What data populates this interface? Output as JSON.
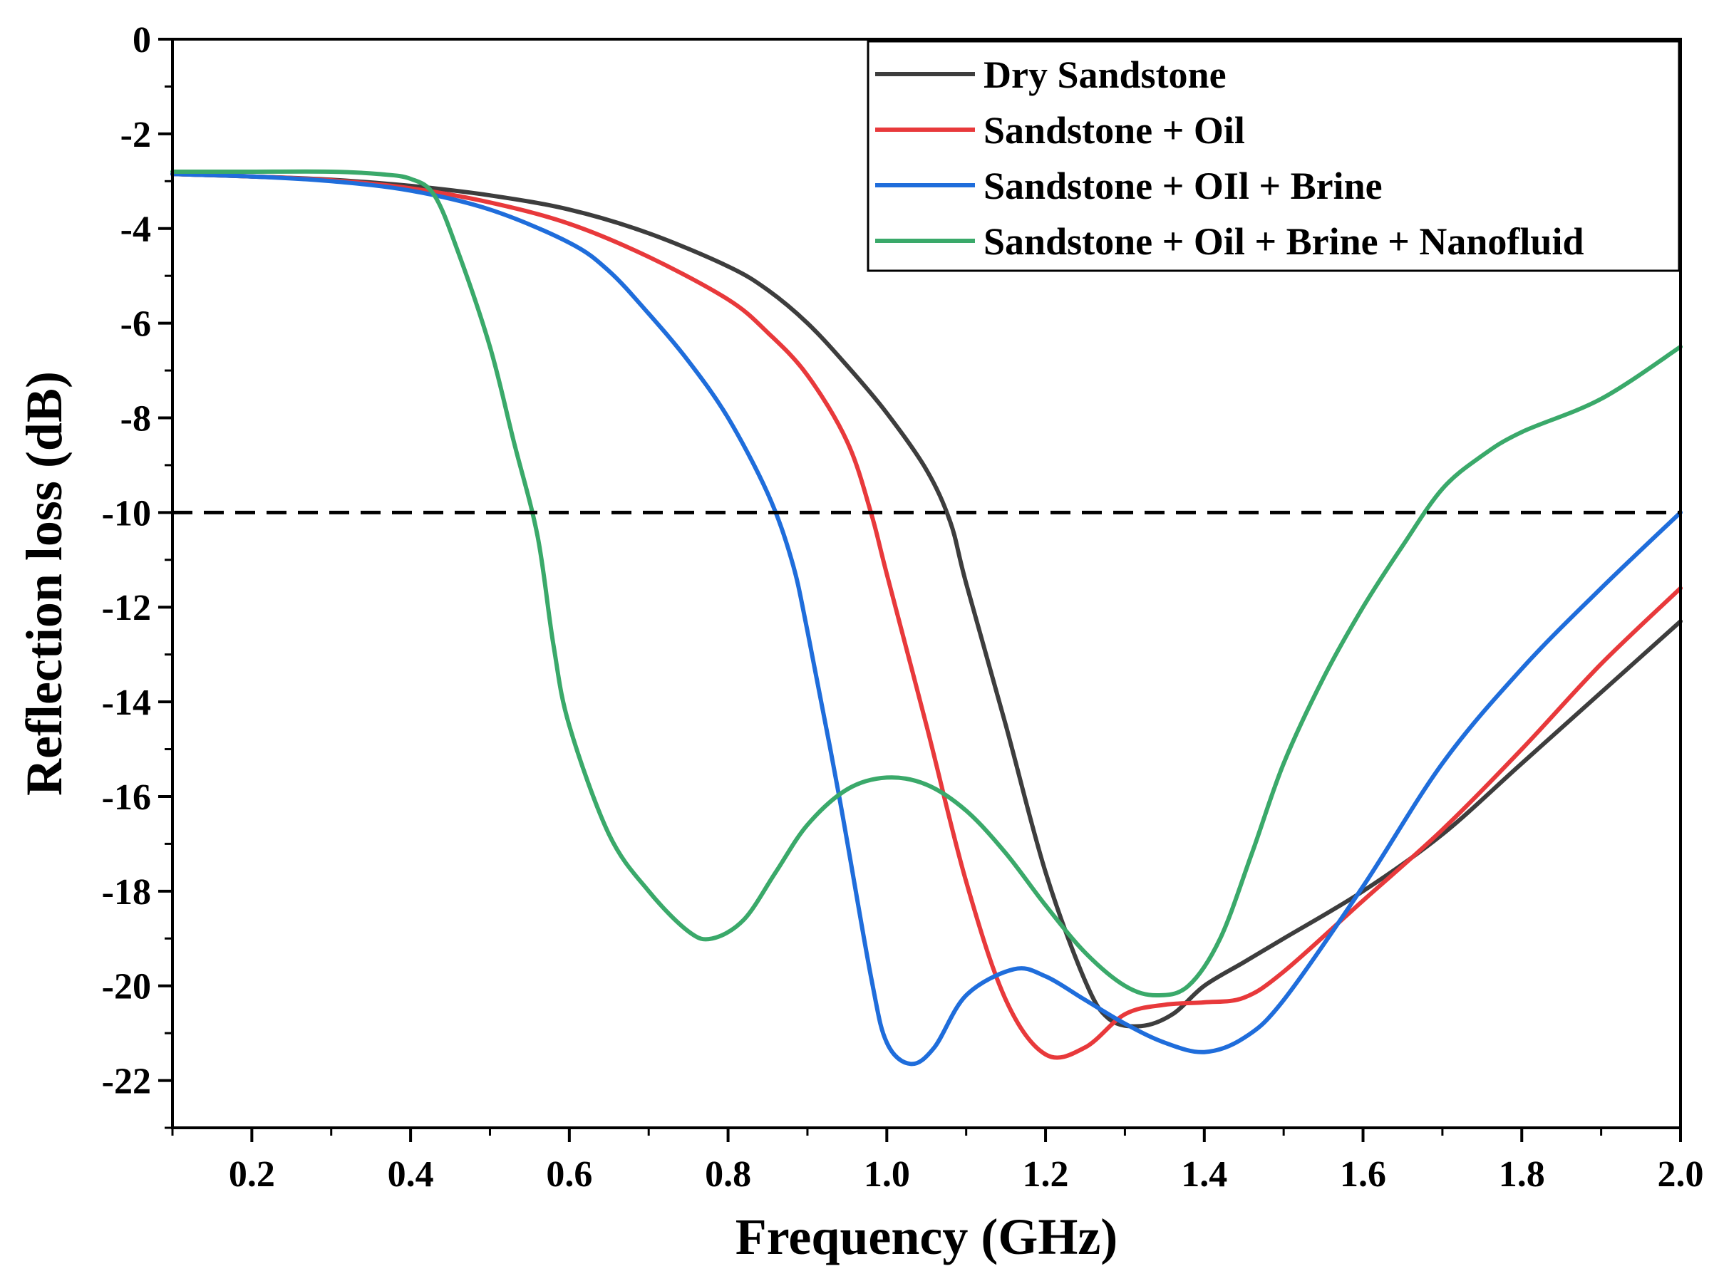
{
  "chart_data": {
    "type": "line",
    "xlabel": "Frequency (GHz)",
    "ylabel": "Reflection loss (dB)",
    "xlim": [
      0.1,
      2.0
    ],
    "ylim": [
      -23,
      0
    ],
    "x_ticks": [
      "0.2",
      "0.4",
      "0.6",
      "0.8",
      "1.0",
      "1.2",
      "1.4",
      "1.6",
      "1.8",
      "2.0"
    ],
    "y_ticks": [
      "0",
      "-2",
      "-4",
      "-6",
      "-8",
      "-10",
      "-12",
      "-14",
      "-16",
      "-18",
      "-20",
      "-22"
    ],
    "grid": false,
    "legend_position": "top-right",
    "reference_line": {
      "y": -10,
      "style": "dashed",
      "color": "#000000"
    },
    "series": [
      {
        "name": "Dry Sandstone",
        "color": "#3d3d3d",
        "points": [
          [
            0.1,
            -2.85
          ],
          [
            0.2,
            -2.9
          ],
          [
            0.3,
            -2.97
          ],
          [
            0.4,
            -3.1
          ],
          [
            0.5,
            -3.3
          ],
          [
            0.6,
            -3.6
          ],
          [
            0.7,
            -4.1
          ],
          [
            0.8,
            -4.8
          ],
          [
            0.85,
            -5.3
          ],
          [
            0.9,
            -6.0
          ],
          [
            0.95,
            -6.9
          ],
          [
            1.0,
            -7.9
          ],
          [
            1.05,
            -9.1
          ],
          [
            1.08,
            -10.2
          ],
          [
            1.1,
            -11.5
          ],
          [
            1.15,
            -14.5
          ],
          [
            1.2,
            -17.6
          ],
          [
            1.25,
            -19.9
          ],
          [
            1.28,
            -20.7
          ],
          [
            1.32,
            -20.85
          ],
          [
            1.36,
            -20.6
          ],
          [
            1.4,
            -20.0
          ],
          [
            1.45,
            -19.5
          ],
          [
            1.5,
            -19.0
          ],
          [
            1.6,
            -18.0
          ],
          [
            1.7,
            -16.8
          ],
          [
            1.8,
            -15.3
          ],
          [
            1.9,
            -13.8
          ],
          [
            2.0,
            -12.3
          ]
        ]
      },
      {
        "name": "Sandstone + Oil",
        "color": "#e8393b",
        "points": [
          [
            0.1,
            -2.85
          ],
          [
            0.2,
            -2.9
          ],
          [
            0.3,
            -2.98
          ],
          [
            0.4,
            -3.15
          ],
          [
            0.5,
            -3.45
          ],
          [
            0.6,
            -3.9
          ],
          [
            0.7,
            -4.6
          ],
          [
            0.8,
            -5.5
          ],
          [
            0.85,
            -6.2
          ],
          [
            0.9,
            -7.1
          ],
          [
            0.95,
            -8.5
          ],
          [
            0.98,
            -10.0
          ],
          [
            1.0,
            -11.3
          ],
          [
            1.05,
            -14.5
          ],
          [
            1.1,
            -17.8
          ],
          [
            1.15,
            -20.3
          ],
          [
            1.2,
            -21.45
          ],
          [
            1.25,
            -21.3
          ],
          [
            1.3,
            -20.6
          ],
          [
            1.35,
            -20.4
          ],
          [
            1.4,
            -20.35
          ],
          [
            1.45,
            -20.25
          ],
          [
            1.5,
            -19.7
          ],
          [
            1.6,
            -18.2
          ],
          [
            1.7,
            -16.7
          ],
          [
            1.8,
            -15.0
          ],
          [
            1.9,
            -13.2
          ],
          [
            2.0,
            -11.6
          ]
        ]
      },
      {
        "name": "Sandstone + OIl + Brine",
        "color": "#1f6ddb",
        "points": [
          [
            0.1,
            -2.85
          ],
          [
            0.2,
            -2.9
          ],
          [
            0.3,
            -3.0
          ],
          [
            0.4,
            -3.2
          ],
          [
            0.5,
            -3.6
          ],
          [
            0.6,
            -4.3
          ],
          [
            0.65,
            -4.9
          ],
          [
            0.7,
            -5.8
          ],
          [
            0.75,
            -6.8
          ],
          [
            0.8,
            -8.0
          ],
          [
            0.85,
            -9.6
          ],
          [
            0.88,
            -11.0
          ],
          [
            0.9,
            -12.5
          ],
          [
            0.94,
            -16.0
          ],
          [
            0.98,
            -19.8
          ],
          [
            1.0,
            -21.2
          ],
          [
            1.03,
            -21.65
          ],
          [
            1.06,
            -21.3
          ],
          [
            1.1,
            -20.2
          ],
          [
            1.16,
            -19.65
          ],
          [
            1.2,
            -19.8
          ],
          [
            1.25,
            -20.3
          ],
          [
            1.3,
            -20.8
          ],
          [
            1.35,
            -21.2
          ],
          [
            1.4,
            -21.4
          ],
          [
            1.45,
            -21.1
          ],
          [
            1.5,
            -20.3
          ],
          [
            1.6,
            -17.9
          ],
          [
            1.7,
            -15.3
          ],
          [
            1.8,
            -13.3
          ],
          [
            1.9,
            -11.6
          ],
          [
            2.0,
            -10.0
          ]
        ]
      },
      {
        "name": "Sandstone + Oil + Brine + Nanofluid",
        "color": "#3aa96a",
        "points": [
          [
            0.1,
            -2.8
          ],
          [
            0.2,
            -2.8
          ],
          [
            0.3,
            -2.8
          ],
          [
            0.36,
            -2.85
          ],
          [
            0.4,
            -2.95
          ],
          [
            0.43,
            -3.3
          ],
          [
            0.46,
            -4.5
          ],
          [
            0.5,
            -6.5
          ],
          [
            0.53,
            -8.5
          ],
          [
            0.56,
            -10.5
          ],
          [
            0.58,
            -12.8
          ],
          [
            0.6,
            -14.5
          ],
          [
            0.65,
            -16.8
          ],
          [
            0.7,
            -18.0
          ],
          [
            0.75,
            -18.85
          ],
          [
            0.78,
            -19.0
          ],
          [
            0.82,
            -18.6
          ],
          [
            0.86,
            -17.6
          ],
          [
            0.9,
            -16.6
          ],
          [
            0.95,
            -15.85
          ],
          [
            1.0,
            -15.6
          ],
          [
            1.05,
            -15.75
          ],
          [
            1.1,
            -16.3
          ],
          [
            1.15,
            -17.2
          ],
          [
            1.2,
            -18.3
          ],
          [
            1.25,
            -19.3
          ],
          [
            1.3,
            -20.0
          ],
          [
            1.34,
            -20.2
          ],
          [
            1.38,
            -20.0
          ],
          [
            1.42,
            -19.0
          ],
          [
            1.46,
            -17.2
          ],
          [
            1.5,
            -15.3
          ],
          [
            1.55,
            -13.5
          ],
          [
            1.6,
            -12.0
          ],
          [
            1.65,
            -10.7
          ],
          [
            1.7,
            -9.5
          ],
          [
            1.75,
            -8.8
          ],
          [
            1.8,
            -8.3
          ],
          [
            1.9,
            -7.6
          ],
          [
            2.0,
            -6.5
          ]
        ]
      }
    ]
  }
}
